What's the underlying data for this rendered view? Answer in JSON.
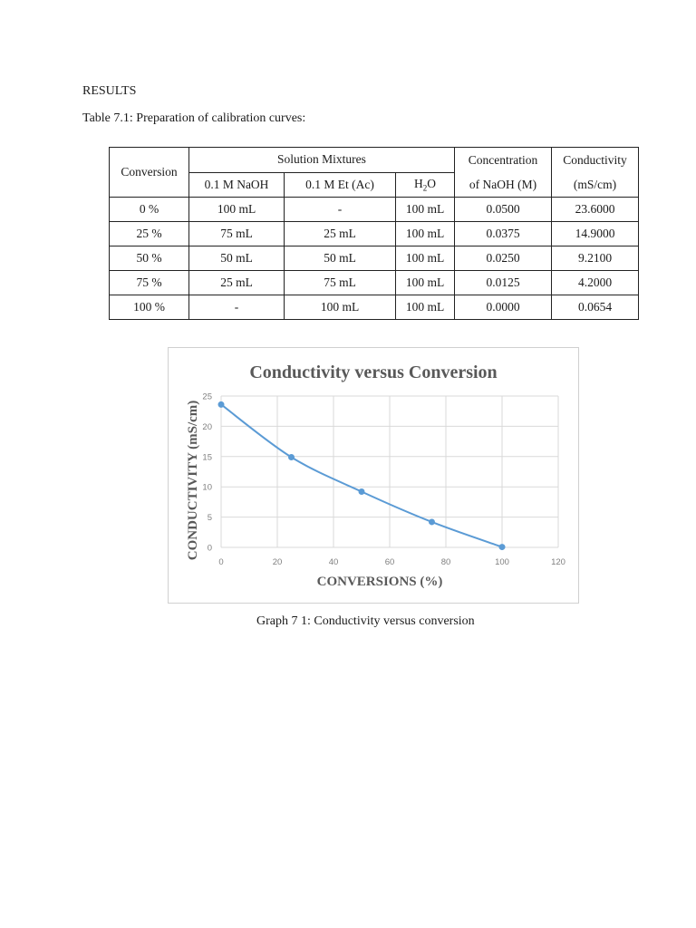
{
  "heading": "RESULTS",
  "table_caption": "Table 7.1: Preparation of calibration curves:",
  "table": {
    "header_top": {
      "conversion": "Conversion",
      "solution_mixtures": "Solution Mixtures",
      "concentration_line1": "Concentration",
      "concentration_line2": "of NaOH (M)",
      "conductivity_line1": "Conductivity",
      "conductivity_line2": "(mS/cm)"
    },
    "header_sub": {
      "naoh": "0.1 M NaOH",
      "etac": "0.1 M Et (Ac)",
      "h2o_main": "H",
      "h2o_sub": "2",
      "h2o_tail": "O"
    },
    "rows": [
      {
        "conversion": "0 %",
        "naoh": "100 mL",
        "etac": "-",
        "h2o": "100 mL",
        "conc": "0.0500",
        "cond": "23.6000"
      },
      {
        "conversion": "25 %",
        "naoh": "75 mL",
        "etac": "25 mL",
        "h2o": "100 mL",
        "conc": "0.0375",
        "cond": "14.9000"
      },
      {
        "conversion": "50 %",
        "naoh": "50 mL",
        "etac": "50 mL",
        "h2o": "100 mL",
        "conc": "0.0250",
        "cond": "9.2100"
      },
      {
        "conversion": "75 %",
        "naoh": "25 mL",
        "etac": "75 mL",
        "h2o": "100 mL",
        "conc": "0.0125",
        "cond": "4.2000"
      },
      {
        "conversion": "100 %",
        "naoh": "-",
        "etac": "100 mL",
        "h2o": "100 mL",
        "conc": "0.0000",
        "cond": "0.0654"
      }
    ]
  },
  "chart_data": {
    "type": "scatter",
    "title": "Conductivity versus Conversion",
    "xlabel": "CONVERSIONS (%)",
    "ylabel": "CONDUCTIVITY (mS/cm)",
    "x": [
      0,
      25,
      50,
      75,
      100
    ],
    "series": [
      {
        "name": "Conductivity",
        "values": [
          23.6,
          14.9,
          9.21,
          4.2,
          0.0654
        ],
        "color": "#5b9bd5",
        "smooth_line": true,
        "markers": true
      }
    ],
    "xlim": [
      0,
      120
    ],
    "ylim": [
      0,
      25
    ],
    "xticks": [
      "0",
      "20",
      "40",
      "60",
      "80",
      "100",
      "120"
    ],
    "yticks": [
      "0",
      "5",
      "10",
      "15",
      "20",
      "25"
    ],
    "grid": true,
    "legend": "none"
  },
  "graph_caption": "Graph 7 1: Conductivity versus conversion"
}
